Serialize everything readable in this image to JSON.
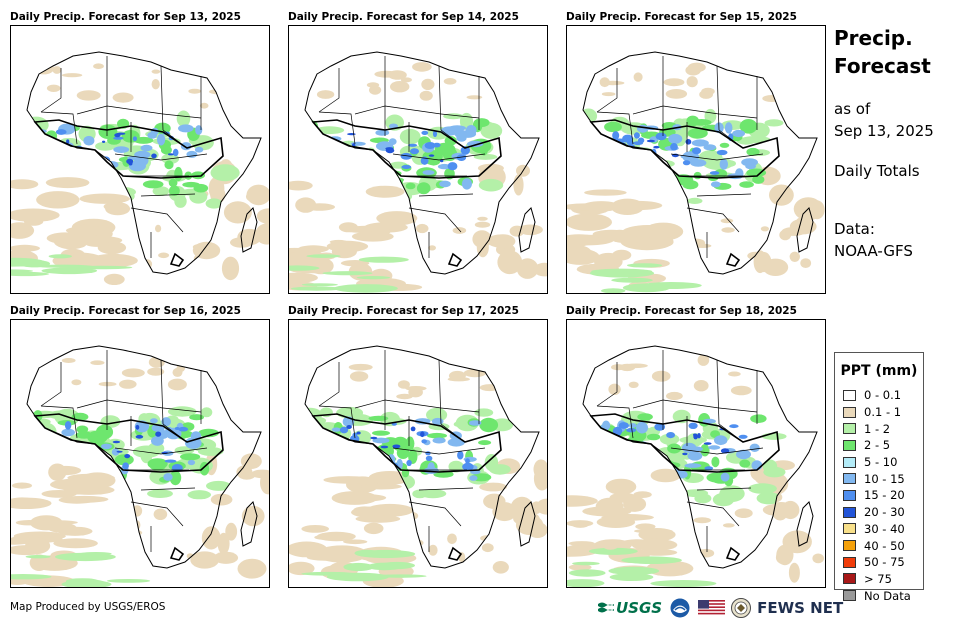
{
  "panels": [
    {
      "title": "Daily Precip. Forecast for Sep 13, 2025"
    },
    {
      "title": "Daily Precip. Forecast for Sep 14, 2025"
    },
    {
      "title": "Daily Precip. Forecast for Sep 15, 2025"
    },
    {
      "title": "Daily Precip. Forecast for Sep 16, 2025"
    },
    {
      "title": "Daily Precip. Forecast for Sep 17, 2025"
    },
    {
      "title": "Daily Precip. Forecast for Sep 18, 2025"
    }
  ],
  "side": {
    "title_line1": "Precip.",
    "title_line2": "Forecast",
    "asof_line1": "as of",
    "asof_line2": "Sep 13, 2025",
    "period": "Daily Totals",
    "source_line1": "Data:",
    "source_line2": "NOAA-GFS"
  },
  "legend": {
    "title": "PPT (mm)",
    "items": [
      {
        "label": "0 - 0.1",
        "color": "#ffffff"
      },
      {
        "label": "0.1 - 1",
        "color": "#ead9bb"
      },
      {
        "label": "1 - 2",
        "color": "#b4f0a8"
      },
      {
        "label": "2 - 5",
        "color": "#6ee66e"
      },
      {
        "label": "5 - 10",
        "color": "#b4ecf8"
      },
      {
        "label": "10 - 15",
        "color": "#82b8f0"
      },
      {
        "label": "15 - 20",
        "color": "#4f8ff0"
      },
      {
        "label": "20 - 30",
        "color": "#2254d8"
      },
      {
        "label": "30 - 40",
        "color": "#f8e08a"
      },
      {
        "label": "40 - 50",
        "color": "#f5a10a"
      },
      {
        "label": "50 - 75",
        "color": "#f03c0a"
      },
      {
        "label": "> 75",
        "color": "#a81818"
      },
      {
        "label": "No Data",
        "color": "#9a9a9a"
      }
    ]
  },
  "credit": "Map Produced by USGS/EROS",
  "logos": {
    "usgs": "USGS",
    "noaa": "noaa-logo-icon",
    "flag": "us-flag-icon",
    "seal": "state-department-seal-icon",
    "fews": "FEWS NET"
  }
}
